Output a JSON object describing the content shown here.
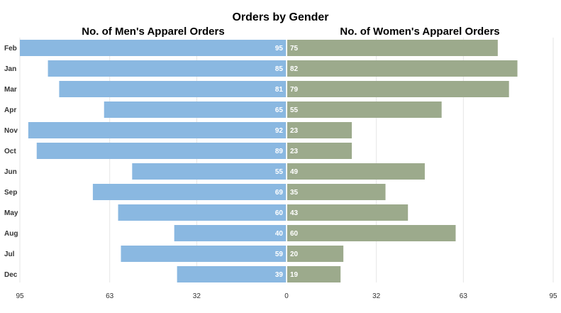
{
  "chart_data": {
    "type": "bar",
    "title": "Orders by Gender",
    "categories": [
      "Feb",
      "Jan",
      "Mar",
      "Apr",
      "Nov",
      "Oct",
      "Jun",
      "Sep",
      "May",
      "Aug",
      "Jul",
      "Dec"
    ],
    "series": [
      {
        "name": "No. of Men's Apparel Orders",
        "values": [
          95,
          85,
          81,
          65,
          92,
          89,
          55,
          69,
          60,
          40,
          59,
          39
        ],
        "color": "#8ab8e1"
      },
      {
        "name": "No. of Women's Apparel Orders",
        "values": [
          75,
          82,
          79,
          55,
          23,
          23,
          49,
          35,
          43,
          60,
          20,
          19
        ],
        "color": "#9caa8c"
      }
    ],
    "left_axis": {
      "range": [
        95,
        0
      ],
      "ticks": [
        95,
        63,
        32,
        0
      ]
    },
    "right_axis": {
      "range": [
        0,
        95
      ],
      "ticks": [
        0,
        32,
        63,
        95
      ]
    },
    "grid": true,
    "gridline_color": "#e6e6e6"
  }
}
